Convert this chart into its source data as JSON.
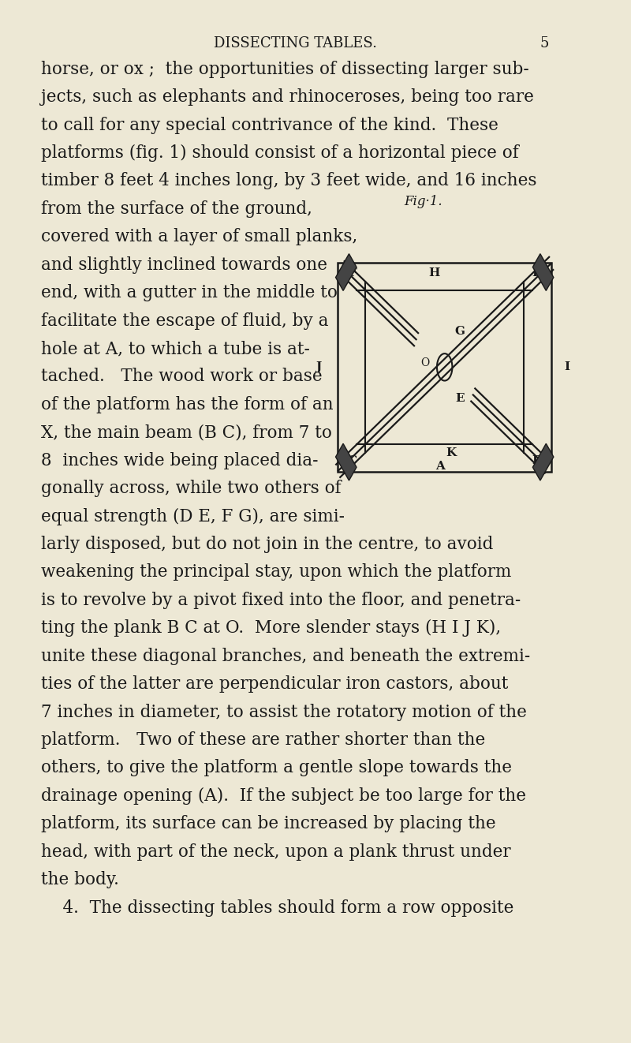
{
  "bg_color": "#EDE8D5",
  "text_color": "#1a1a1a",
  "title": "DISSECTING TABLES.",
  "page_number": "5",
  "title_fontsize": 13,
  "body_fontsize": 15.5,
  "font_family": "DejaVu Serif",
  "body_text_full": [
    "horse, or ox ;  the opportunities of dissecting larger sub-",
    "jects, such as elephants and rhinoceroses, being too rare",
    "to call for any special contrivance of the kind.  These",
    "platforms (fig. 1) should consist of a horizontal piece of",
    "timber 8 feet 4 inches long, by 3 feet wide, and 16 inches"
  ],
  "body_text_left": [
    "from the surface of the ground,",
    "covered with a layer of small planks,",
    "and slightly inclined towards one",
    "end, with a gutter in the middle to",
    "facilitate the escape of fluid, by a",
    "hole at A, to which a tube is at-",
    "tached.   The wood work or base",
    "of the platform has the form of an",
    "X, the main beam (B C), from 7 to",
    "8  inches wide being placed dia-",
    "gonally across, while two others of",
    "equal strength (D E, F G), are simi-"
  ],
  "body_text_full2": [
    "larly disposed, but do not join in the centre, to avoid",
    "weakening the principal stay, upon which the platform",
    "is to revolve by a pivot fixed into the floor, and penetra-",
    "ting the plank B C at O.  More slender stays (H I J K),",
    "unite these diagonal branches, and beneath the extremi-",
    "ties of the latter are perpendicular iron castors, about",
    "7 inches in diameter, to assist the rotatory motion of the",
    "platform.   Two of these are rather shorter than the",
    "others, to give the platform a gentle slope towards the",
    "drainage opening (A).  If the subject be too large for the",
    "platform, its surface can be increased by placing the",
    "head, with part of the neck, upon a plank thrust under",
    "the body.",
    "    4.  The dissecting tables should form a row opposite"
  ],
  "fig_label": "Fig·1.",
  "diag_color": "#1a1a1a"
}
